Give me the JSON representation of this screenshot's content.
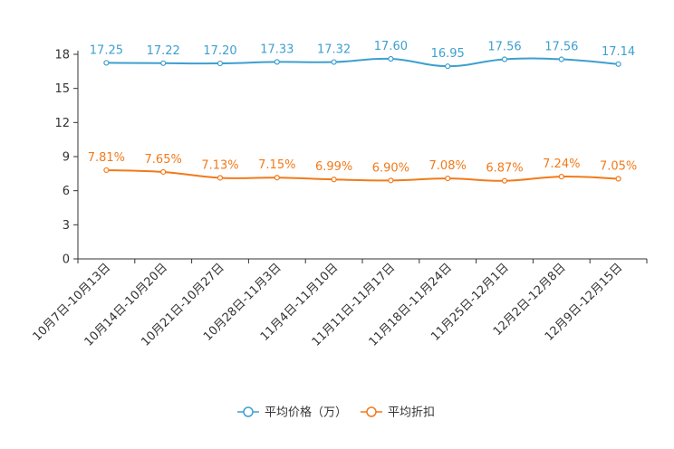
{
  "chart_data": {
    "type": "line",
    "title": "",
    "xlabel": "",
    "ylabel": "",
    "ylim": [
      0,
      18
    ],
    "yticks": [
      0,
      3,
      6,
      9,
      12,
      15,
      18
    ],
    "categories": [
      "10月7日-10月13日",
      "10月14日-10月20日",
      "10月21日-10月27日",
      "10月28日-11月3日",
      "11月4日-11月10日",
      "11月11日-11月17日",
      "11月18日-11月24日",
      "11月25日-12月1日",
      "12月2日-12月8日",
      "12月9日-12月15日"
    ],
    "series": [
      {
        "name": "平均价格（万）",
        "color": "#3e9fcf",
        "values": [
          17.25,
          17.22,
          17.2,
          17.33,
          17.32,
          17.6,
          16.95,
          17.56,
          17.56,
          17.14
        ],
        "labels": [
          "17.25",
          "17.22",
          "17.20",
          "17.33",
          "17.32",
          "17.60",
          "16.95",
          "17.56",
          "17.56",
          "17.14"
        ]
      },
      {
        "name": "平均折扣",
        "color": "#f27a1a",
        "values": [
          7.81,
          7.65,
          7.13,
          7.15,
          6.99,
          6.9,
          7.08,
          6.87,
          7.24,
          7.05
        ],
        "labels": [
          "7.81%",
          "7.65%",
          "7.13%",
          "7.15%",
          "6.99%",
          "6.90%",
          "7.08%",
          "6.87%",
          "7.24%",
          "7.05%"
        ]
      }
    ],
    "legend_position": "bottom-center",
    "grid": false
  }
}
